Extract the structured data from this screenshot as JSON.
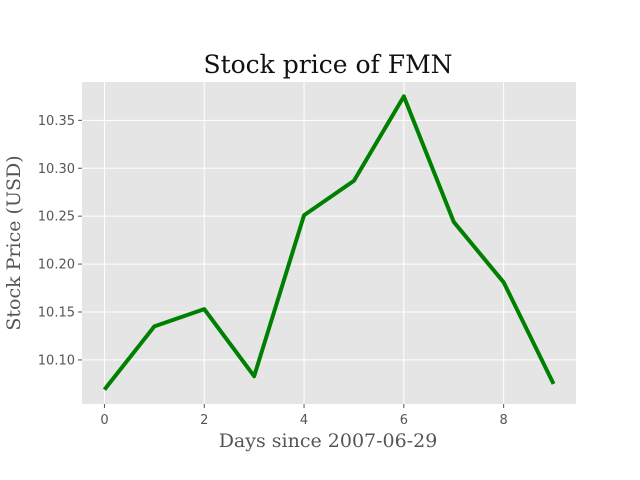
{
  "chart_data": {
    "type": "line",
    "title": "Stock price of FMN",
    "xlabel": "Days since 2007-06-29",
    "ylabel": "Stock Price (USD)",
    "x": [
      0,
      1,
      2,
      3,
      4,
      5,
      6,
      7,
      8,
      9
    ],
    "series": [
      {
        "values": [
          10.069,
          10.135,
          10.153,
          10.083,
          10.251,
          10.287,
          10.375,
          10.244,
          10.181,
          10.075
        ],
        "color": "#008000"
      }
    ],
    "xticks": [
      0,
      2,
      4,
      6,
      8
    ],
    "yticks": [
      10.1,
      10.15,
      10.2,
      10.25,
      10.3,
      10.35
    ],
    "xlim": [
      -0.45,
      9.45
    ],
    "ylim": [
      10.054,
      10.39
    ],
    "grid": true,
    "style": {
      "plot_background": "#e5e5e5",
      "grid_color": "#ffffff"
    }
  }
}
